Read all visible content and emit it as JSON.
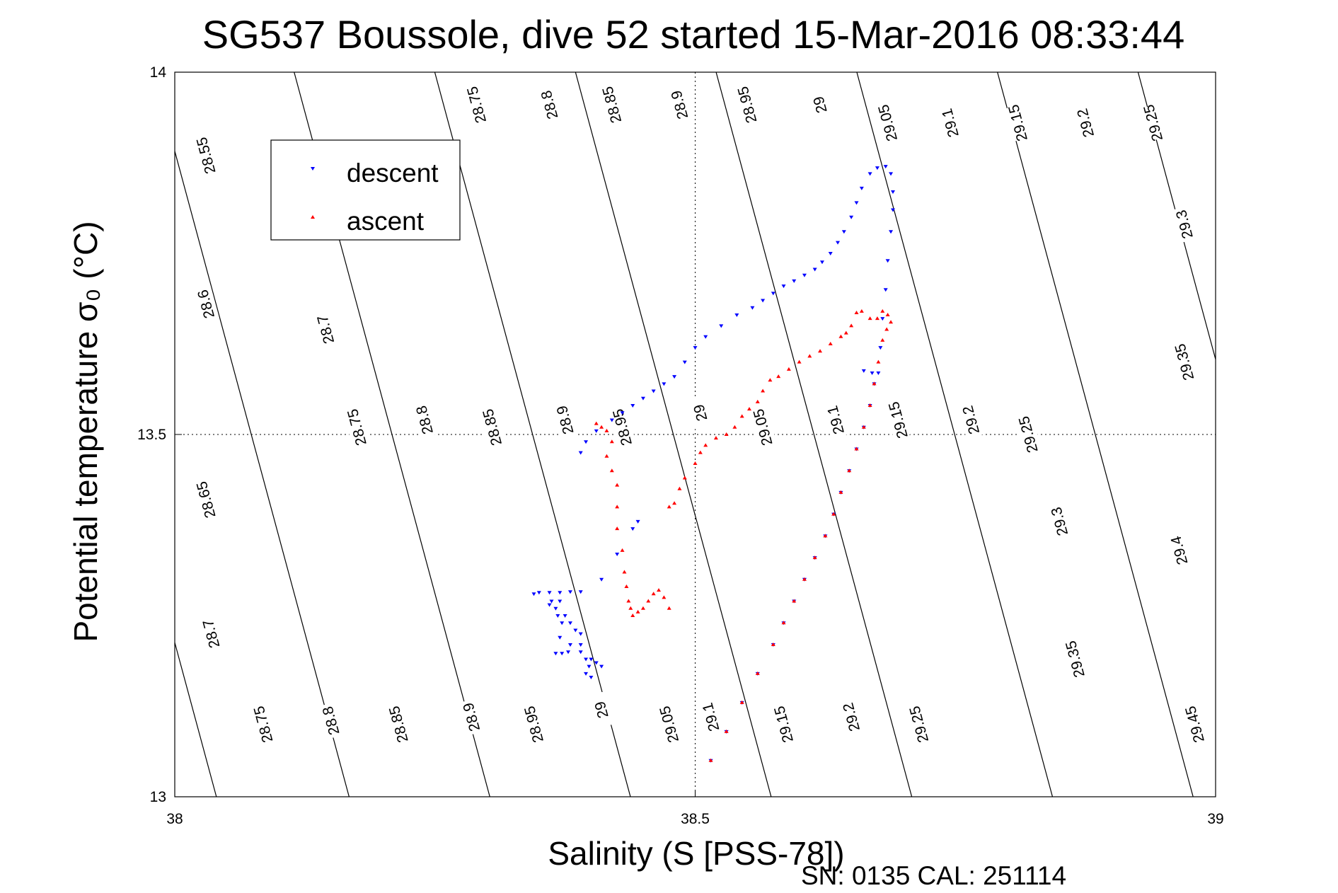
{
  "chart_data": {
    "type": "scatter",
    "title": "SG537 Boussole, dive 52 started 15-Mar-2016 08:33:44",
    "xlabel": "Salinity (S [PSS-78])",
    "ylabel": "Potential temperature σ₀ (°C)",
    "xlim": [
      38,
      39
    ],
    "ylim": [
      13,
      14
    ],
    "xticks": [
      {
        "v": 38,
        "label": "38"
      },
      {
        "v": 38.5,
        "label": "38.5"
      },
      {
        "v": 39,
        "label": "39"
      }
    ],
    "yticks": [
      {
        "v": 13,
        "label": "13"
      },
      {
        "v": 13.5,
        "label": "13.5"
      },
      {
        "v": 14,
        "label": "14"
      }
    ],
    "grid": "dotted",
    "footer": "SN: 0135  CAL: 251114",
    "legend": {
      "position": "top-left",
      "entries": [
        {
          "label": "descent",
          "color": "#0000ff",
          "marker": "triangle-down"
        },
        {
          "label": "ascent",
          "color": "#ff0000",
          "marker": "triangle-up"
        }
      ]
    },
    "density_contours": {
      "color": "#000000",
      "slope_dx_per_dy": 0.188,
      "x_at_bottom": [
        38.04,
        38.1675,
        38.3027,
        38.4378,
        38.573,
        38.7081,
        38.8433,
        38.9784,
        39.1135,
        39.2487,
        39.384,
        39.519
      ],
      "labels": [
        {
          "text": "28.55",
          "s": 38.03,
          "t": 13.885
        },
        {
          "text": "28.75",
          "s": 38.29,
          "t": 13.955
        },
        {
          "text": "28.8",
          "s": 38.36,
          "t": 13.955
        },
        {
          "text": "28.85",
          "s": 38.42,
          "t": 13.955
        },
        {
          "text": "28.9",
          "s": 38.485,
          "t": 13.955
        },
        {
          "text": "28.95",
          "s": 38.55,
          "t": 13.955
        },
        {
          "text": "29",
          "s": 38.62,
          "t": 13.955
        },
        {
          "text": "29.05",
          "s": 38.685,
          "t": 13.93
        },
        {
          "text": "29.1",
          "s": 38.745,
          "t": 13.93
        },
        {
          "text": "29.15",
          "s": 38.81,
          "t": 13.93
        },
        {
          "text": "29.2",
          "s": 38.875,
          "t": 13.93
        },
        {
          "text": "29.25",
          "s": 38.94,
          "t": 13.93
        },
        {
          "text": "29.3",
          "s": 38.97,
          "t": 13.79
        },
        {
          "text": "28.6",
          "s": 38.03,
          "t": 13.68
        },
        {
          "text": "28.7",
          "s": 38.145,
          "t": 13.645
        },
        {
          "text": "29.35",
          "s": 38.97,
          "t": 13.6
        },
        {
          "text": "28.75",
          "s": 38.175,
          "t": 13.51
        },
        {
          "text": "28.8",
          "s": 38.24,
          "t": 13.52
        },
        {
          "text": "28.85",
          "s": 38.305,
          "t": 13.51
        },
        {
          "text": "28.9",
          "s": 38.375,
          "t": 13.52
        },
        {
          "text": "28.95",
          "s": 38.43,
          "t": 13.51
        },
        {
          "text": "29",
          "s": 38.505,
          "t": 13.53
        },
        {
          "text": "29.05",
          "s": 38.565,
          "t": 13.51
        },
        {
          "text": "29.1",
          "s": 38.635,
          "t": 13.52
        },
        {
          "text": "29.15",
          "s": 38.695,
          "t": 13.52
        },
        {
          "text": "29.2",
          "s": 38.765,
          "t": 13.52
        },
        {
          "text": "29.25",
          "s": 38.82,
          "t": 13.5
        },
        {
          "text": "28.65",
          "s": 38.03,
          "t": 13.41
        },
        {
          "text": "29.3",
          "s": 38.85,
          "t": 13.38
        },
        {
          "text": "29.4",
          "s": 38.965,
          "t": 13.34
        },
        {
          "text": "28.7",
          "s": 38.035,
          "t": 13.225
        },
        {
          "text": "29.35",
          "s": 38.865,
          "t": 13.19
        },
        {
          "text": "28.75",
          "s": 38.085,
          "t": 13.1
        },
        {
          "text": "28.8",
          "s": 38.15,
          "t": 13.105
        },
        {
          "text": "28.85",
          "s": 38.215,
          "t": 13.1
        },
        {
          "text": "28.9",
          "s": 38.285,
          "t": 13.11
        },
        {
          "text": "28.95",
          "s": 38.345,
          "t": 13.1
        },
        {
          "text": "29",
          "s": 38.41,
          "t": 13.12
        },
        {
          "text": "29.05",
          "s": 38.475,
          "t": 13.1
        },
        {
          "text": "29.1",
          "s": 38.515,
          "t": 13.11
        },
        {
          "text": "29.15",
          "s": 38.585,
          "t": 13.1
        },
        {
          "text": "29.2",
          "s": 38.65,
          "t": 13.11
        },
        {
          "text": "29.25",
          "s": 38.715,
          "t": 13.1
        },
        {
          "text": "29.45",
          "s": 38.98,
          "t": 13.1
        }
      ]
    },
    "series": [
      {
        "name": "descent",
        "color": "#0000ff",
        "marker": "triangle-down",
        "points": [
          [
            38.515,
            13.05
          ],
          [
            38.53,
            13.09
          ],
          [
            38.545,
            13.13
          ],
          [
            38.56,
            13.17
          ],
          [
            38.575,
            13.21
          ],
          [
            38.585,
            13.24
          ],
          [
            38.595,
            13.27
          ],
          [
            38.605,
            13.3
          ],
          [
            38.615,
            13.33
          ],
          [
            38.625,
            13.36
          ],
          [
            38.633,
            13.39
          ],
          [
            38.64,
            13.42
          ],
          [
            38.648,
            13.45
          ],
          [
            38.655,
            13.48
          ],
          [
            38.662,
            13.51
          ],
          [
            38.668,
            13.54
          ],
          [
            38.672,
            13.57
          ],
          [
            38.676,
            13.585
          ],
          [
            38.67,
            13.585
          ],
          [
            38.662,
            13.588
          ],
          [
            38.678,
            13.62
          ],
          [
            38.68,
            13.66
          ],
          [
            38.683,
            13.7
          ],
          [
            38.685,
            13.74
          ],
          [
            38.688,
            13.78
          ],
          [
            38.69,
            13.81
          ],
          [
            38.69,
            13.835
          ],
          [
            38.688,
            13.86
          ],
          [
            38.683,
            13.87
          ],
          [
            38.675,
            13.868
          ],
          [
            38.668,
            13.86
          ],
          [
            38.66,
            13.84
          ],
          [
            38.655,
            13.82
          ],
          [
            38.65,
            13.8
          ],
          [
            38.643,
            13.78
          ],
          [
            38.637,
            13.765
          ],
          [
            38.63,
            13.75
          ],
          [
            38.622,
            13.738
          ],
          [
            38.615,
            13.728
          ],
          [
            38.605,
            13.72
          ],
          [
            38.595,
            13.712
          ],
          [
            38.585,
            13.705
          ],
          [
            38.575,
            13.695
          ],
          [
            38.565,
            13.685
          ],
          [
            38.555,
            13.675
          ],
          [
            38.54,
            13.665
          ],
          [
            38.525,
            13.65
          ],
          [
            38.51,
            13.635
          ],
          [
            38.5,
            13.62
          ],
          [
            38.49,
            13.6
          ],
          [
            38.48,
            13.58
          ],
          [
            38.47,
            13.57
          ],
          [
            38.46,
            13.56
          ],
          [
            38.45,
            13.55
          ],
          [
            38.44,
            13.54
          ],
          [
            38.43,
            13.53
          ],
          [
            38.42,
            13.52
          ],
          [
            38.405,
            13.505
          ],
          [
            38.395,
            13.49
          ],
          [
            38.39,
            13.475
          ],
          [
            38.445,
            13.38
          ],
          [
            38.44,
            13.37
          ],
          [
            38.425,
            13.335
          ],
          [
            38.41,
            13.3
          ],
          [
            38.39,
            13.283
          ],
          [
            38.38,
            13.283
          ],
          [
            38.37,
            13.282
          ],
          [
            38.36,
            13.282
          ],
          [
            38.35,
            13.282
          ],
          [
            38.345,
            13.28
          ],
          [
            38.37,
            13.27
          ],
          [
            38.375,
            13.25
          ],
          [
            38.38,
            13.24
          ],
          [
            38.385,
            13.23
          ],
          [
            38.39,
            13.225
          ],
          [
            38.39,
            13.2
          ],
          [
            38.395,
            13.19
          ],
          [
            38.4,
            13.19
          ],
          [
            38.405,
            13.185
          ],
          [
            38.41,
            13.18
          ],
          [
            38.398,
            13.18
          ],
          [
            38.395,
            13.17
          ],
          [
            38.4,
            13.165
          ],
          [
            38.39,
            13.21
          ],
          [
            38.38,
            13.21
          ],
          [
            38.378,
            13.2
          ],
          [
            38.372,
            13.198
          ],
          [
            38.366,
            13.198
          ],
          [
            38.37,
            13.22
          ],
          [
            38.372,
            13.24
          ],
          [
            38.368,
            13.25
          ],
          [
            38.366,
            13.26
          ],
          [
            38.362,
            13.27
          ],
          [
            38.36,
            13.265
          ]
        ]
      },
      {
        "name": "ascent",
        "color": "#ff0000",
        "marker": "triangle-up",
        "points": [
          [
            38.515,
            13.05
          ],
          [
            38.53,
            13.09
          ],
          [
            38.545,
            13.13
          ],
          [
            38.56,
            13.17
          ],
          [
            38.575,
            13.21
          ],
          [
            38.585,
            13.24
          ],
          [
            38.595,
            13.27
          ],
          [
            38.605,
            13.3
          ],
          [
            38.615,
            13.33
          ],
          [
            38.625,
            13.36
          ],
          [
            38.633,
            13.39
          ],
          [
            38.64,
            13.42
          ],
          [
            38.648,
            13.45
          ],
          [
            38.655,
            13.48
          ],
          [
            38.662,
            13.51
          ],
          [
            38.668,
            13.54
          ],
          [
            38.672,
            13.57
          ],
          [
            38.676,
            13.6
          ],
          [
            38.68,
            13.63
          ],
          [
            38.684,
            13.645
          ],
          [
            38.688,
            13.655
          ],
          [
            38.685,
            13.665
          ],
          [
            38.68,
            13.67
          ],
          [
            38.675,
            13.66
          ],
          [
            38.668,
            13.66
          ],
          [
            38.66,
            13.67
          ],
          [
            38.655,
            13.668
          ],
          [
            38.65,
            13.65
          ],
          [
            38.645,
            13.64
          ],
          [
            38.64,
            13.635
          ],
          [
            38.63,
            13.625
          ],
          [
            38.62,
            13.615
          ],
          [
            38.61,
            13.608
          ],
          [
            38.6,
            13.6
          ],
          [
            38.59,
            13.59
          ],
          [
            38.58,
            13.58
          ],
          [
            38.572,
            13.575
          ],
          [
            38.565,
            13.56
          ],
          [
            38.56,
            13.545
          ],
          [
            38.552,
            13.535
          ],
          [
            38.545,
            13.525
          ],
          [
            38.538,
            13.51
          ],
          [
            38.53,
            13.5
          ],
          [
            38.52,
            13.495
          ],
          [
            38.51,
            13.485
          ],
          [
            38.505,
            13.475
          ],
          [
            38.5,
            13.46
          ],
          [
            38.49,
            13.44
          ],
          [
            38.485,
            13.425
          ],
          [
            38.48,
            13.405
          ],
          [
            38.475,
            13.4
          ],
          [
            38.405,
            13.515
          ],
          [
            38.41,
            13.51
          ],
          [
            38.415,
            13.505
          ],
          [
            38.42,
            13.49
          ],
          [
            38.415,
            13.47
          ],
          [
            38.42,
            13.45
          ],
          [
            38.425,
            13.43
          ],
          [
            38.425,
            13.4
          ],
          [
            38.425,
            13.37
          ],
          [
            38.43,
            13.34
          ],
          [
            38.432,
            13.31
          ],
          [
            38.434,
            13.29
          ],
          [
            38.436,
            13.27
          ],
          [
            38.438,
            13.26
          ],
          [
            38.44,
            13.25
          ],
          [
            38.445,
            13.255
          ],
          [
            38.45,
            13.26
          ],
          [
            38.455,
            13.27
          ],
          [
            38.46,
            13.28
          ],
          [
            38.465,
            13.285
          ],
          [
            38.47,
            13.275
          ],
          [
            38.475,
            13.26
          ]
        ]
      }
    ]
  }
}
